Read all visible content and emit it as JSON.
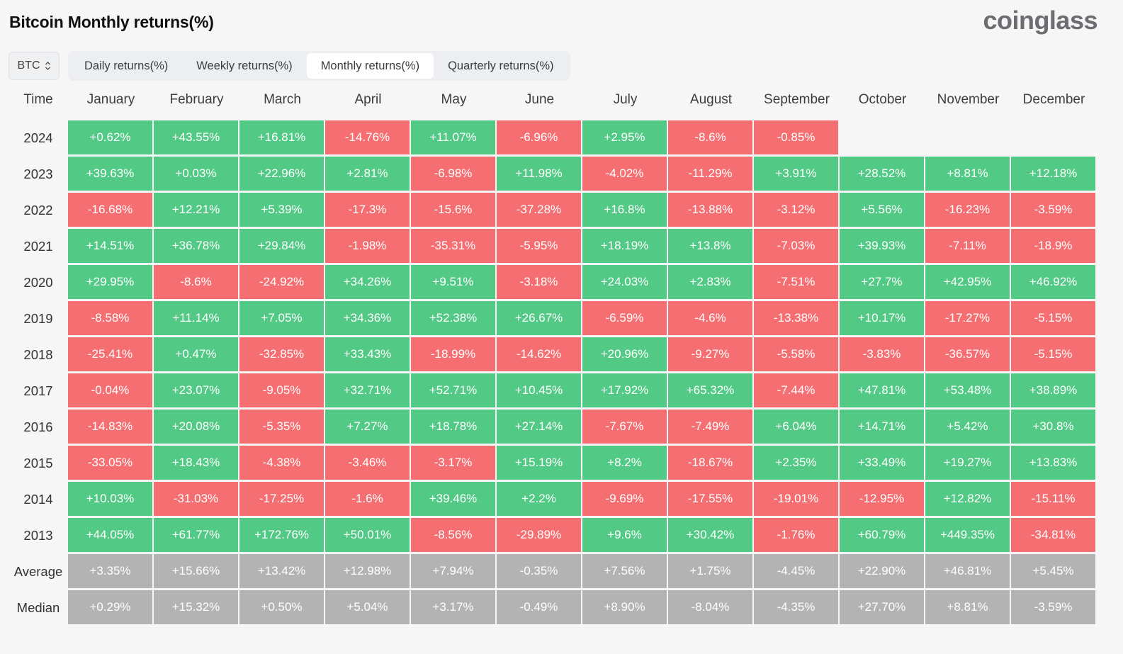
{
  "title": "Bitcoin Monthly returns(%)",
  "brand": "coinglass",
  "coin_select": {
    "value": "BTC",
    "icon": "chevron-up-down-icon"
  },
  "tabs": [
    {
      "label": "Daily returns(%)",
      "active": false
    },
    {
      "label": "Weekly returns(%)",
      "active": false
    },
    {
      "label": "Monthly returns(%)",
      "active": true
    },
    {
      "label": "Quarterly returns(%)",
      "active": false
    }
  ],
  "colors": {
    "positive": "#52c985",
    "negative": "#f56f72",
    "stat": "#b3b3b3"
  },
  "table": {
    "time_header": "Time",
    "months": [
      "January",
      "February",
      "March",
      "April",
      "May",
      "June",
      "July",
      "August",
      "September",
      "October",
      "November",
      "December"
    ],
    "rows": [
      {
        "label": "2024",
        "values": [
          "+0.62%",
          "+43.55%",
          "+16.81%",
          "-14.76%",
          "+11.07%",
          "-6.96%",
          "+2.95%",
          "-8.6%",
          "-0.85%",
          "",
          "",
          ""
        ]
      },
      {
        "label": "2023",
        "values": [
          "+39.63%",
          "+0.03%",
          "+22.96%",
          "+2.81%",
          "-6.98%",
          "+11.98%",
          "-4.02%",
          "-11.29%",
          "+3.91%",
          "+28.52%",
          "+8.81%",
          "+12.18%"
        ]
      },
      {
        "label": "2022",
        "values": [
          "-16.68%",
          "+12.21%",
          "+5.39%",
          "-17.3%",
          "-15.6%",
          "-37.28%",
          "+16.8%",
          "-13.88%",
          "-3.12%",
          "+5.56%",
          "-16.23%",
          "-3.59%"
        ]
      },
      {
        "label": "2021",
        "values": [
          "+14.51%",
          "+36.78%",
          "+29.84%",
          "-1.98%",
          "-35.31%",
          "-5.95%",
          "+18.19%",
          "+13.8%",
          "-7.03%",
          "+39.93%",
          "-7.11%",
          "-18.9%"
        ]
      },
      {
        "label": "2020",
        "values": [
          "+29.95%",
          "-8.6%",
          "-24.92%",
          "+34.26%",
          "+9.51%",
          "-3.18%",
          "+24.03%",
          "+2.83%",
          "-7.51%",
          "+27.7%",
          "+42.95%",
          "+46.92%"
        ]
      },
      {
        "label": "2019",
        "values": [
          "-8.58%",
          "+11.14%",
          "+7.05%",
          "+34.36%",
          "+52.38%",
          "+26.67%",
          "-6.59%",
          "-4.6%",
          "-13.38%",
          "+10.17%",
          "-17.27%",
          "-5.15%"
        ]
      },
      {
        "label": "2018",
        "values": [
          "-25.41%",
          "+0.47%",
          "-32.85%",
          "+33.43%",
          "-18.99%",
          "-14.62%",
          "+20.96%",
          "-9.27%",
          "-5.58%",
          "-3.83%",
          "-36.57%",
          "-5.15%"
        ]
      },
      {
        "label": "2017",
        "values": [
          "-0.04%",
          "+23.07%",
          "-9.05%",
          "+32.71%",
          "+52.71%",
          "+10.45%",
          "+17.92%",
          "+65.32%",
          "-7.44%",
          "+47.81%",
          "+53.48%",
          "+38.89%"
        ]
      },
      {
        "label": "2016",
        "values": [
          "-14.83%",
          "+20.08%",
          "-5.35%",
          "+7.27%",
          "+18.78%",
          "+27.14%",
          "-7.67%",
          "-7.49%",
          "+6.04%",
          "+14.71%",
          "+5.42%",
          "+30.8%"
        ]
      },
      {
        "label": "2015",
        "values": [
          "-33.05%",
          "+18.43%",
          "-4.38%",
          "-3.46%",
          "-3.17%",
          "+15.19%",
          "+8.2%",
          "-18.67%",
          "+2.35%",
          "+33.49%",
          "+19.27%",
          "+13.83%"
        ]
      },
      {
        "label": "2014",
        "values": [
          "+10.03%",
          "-31.03%",
          "-17.25%",
          "-1.6%",
          "+39.46%",
          "+2.2%",
          "-9.69%",
          "-17.55%",
          "-19.01%",
          "-12.95%",
          "+12.82%",
          "-15.11%"
        ]
      },
      {
        "label": "2013",
        "values": [
          "+44.05%",
          "+61.77%",
          "+172.76%",
          "+50.01%",
          "-8.56%",
          "-29.89%",
          "+9.6%",
          "+30.42%",
          "-1.76%",
          "+60.79%",
          "+449.35%",
          "-34.81%"
        ]
      }
    ],
    "stats": [
      {
        "label": "Average",
        "values": [
          "+3.35%",
          "+15.66%",
          "+13.42%",
          "+12.98%",
          "+7.94%",
          "-0.35%",
          "+7.56%",
          "+1.75%",
          "-4.45%",
          "+22.90%",
          "+46.81%",
          "+5.45%"
        ]
      },
      {
        "label": "Median",
        "values": [
          "+0.29%",
          "+15.32%",
          "+0.50%",
          "+5.04%",
          "+3.17%",
          "-0.49%",
          "+8.90%",
          "-8.04%",
          "-4.35%",
          "+27.70%",
          "+8.81%",
          "-3.59%"
        ]
      }
    ]
  }
}
